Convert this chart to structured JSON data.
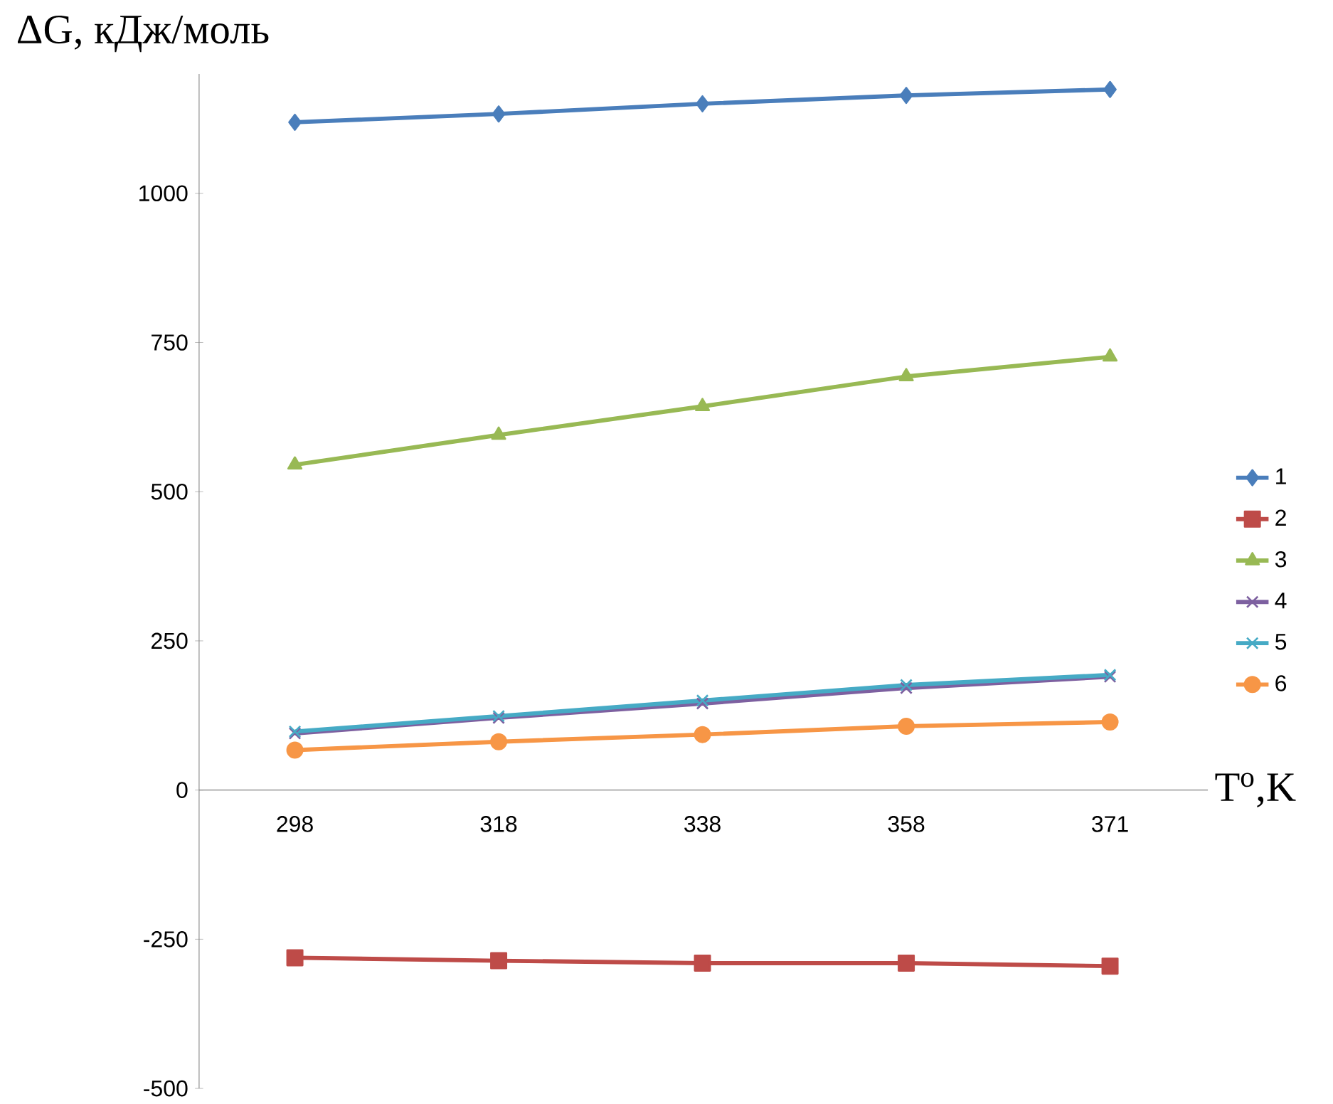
{
  "chart_data": {
    "type": "line",
    "xlabel": "T$^{o}$,K",
    "ylabel": "ΔG, кДж/моль",
    "categories": [
      "298",
      "318",
      "338",
      "358",
      "371"
    ],
    "series": [
      {
        "name": "1",
        "color": "#4a7ebb",
        "marker": "diamond",
        "values": [
          1119,
          1133,
          1150,
          1164,
          1174
        ]
      },
      {
        "name": "2",
        "color": "#be4b48",
        "marker": "square",
        "values": [
          -281,
          -286,
          -290,
          -290,
          -295
        ]
      },
      {
        "name": "3",
        "color": "#98b954",
        "marker": "triangle",
        "values": [
          545,
          595,
          643,
          693,
          726
        ]
      },
      {
        "name": "4",
        "color": "#7d60a0",
        "marker": "cross",
        "values": [
          95,
          121,
          145,
          171,
          190
        ]
      },
      {
        "name": "5",
        "color": "#46aac5",
        "marker": "cross",
        "values": [
          98,
          124,
          150,
          176,
          193
        ]
      },
      {
        "name": "6",
        "color": "#f79646",
        "marker": "circle",
        "values": [
          67,
          81,
          93,
          107,
          114
        ]
      }
    ],
    "ylim": [
      -500,
      1200
    ],
    "yticks": [
      -500,
      -250,
      0,
      250,
      500,
      750,
      1000
    ],
    "legend": "right"
  }
}
